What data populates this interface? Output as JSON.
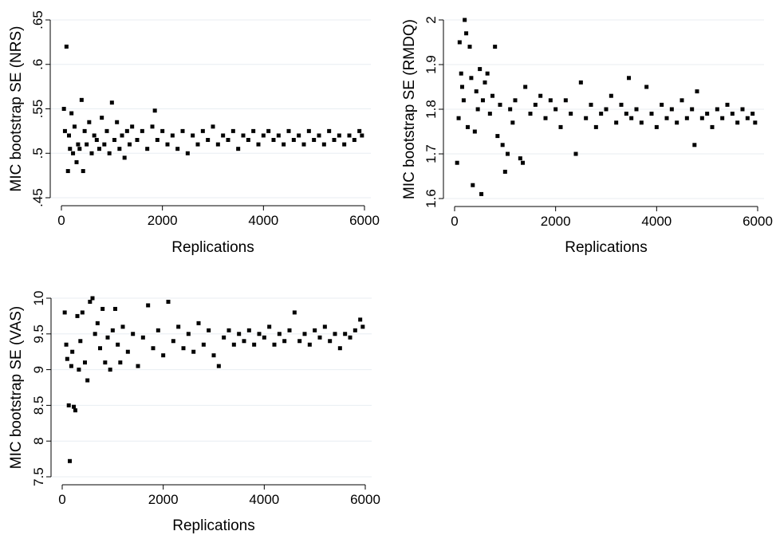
{
  "chart_data": [
    {
      "type": "scatter",
      "xlabel": "Replications",
      "ylabel": "MIC bootstrap SE (NRS)",
      "xlim": [
        0,
        6000
      ],
      "ylim": [
        0.45,
        0.65
      ],
      "xticks": [
        "0",
        "2000",
        "4000",
        "6000"
      ],
      "yticks": [
        ".45",
        ".5",
        ".55",
        ".6",
        ".65"
      ],
      "grid": true,
      "series": [
        {
          "points": [
            [
              50,
              0.55
            ],
            [
              70,
              0.525
            ],
            [
              100,
              0.62
            ],
            [
              130,
              0.48
            ],
            [
              150,
              0.52
            ],
            [
              170,
              0.505
            ],
            [
              200,
              0.545
            ],
            [
              230,
              0.5
            ],
            [
              260,
              0.53
            ],
            [
              300,
              0.49
            ],
            [
              330,
              0.51
            ],
            [
              360,
              0.505
            ],
            [
              400,
              0.56
            ],
            [
              430,
              0.48
            ],
            [
              460,
              0.525
            ],
            [
              500,
              0.51
            ],
            [
              550,
              0.535
            ],
            [
              600,
              0.5
            ],
            [
              650,
              0.52
            ],
            [
              700,
              0.515
            ],
            [
              750,
              0.505
            ],
            [
              800,
              0.54
            ],
            [
              850,
              0.51
            ],
            [
              900,
              0.525
            ],
            [
              950,
              0.5
            ],
            [
              1000,
              0.557
            ],
            [
              1050,
              0.515
            ],
            [
              1100,
              0.535
            ],
            [
              1150,
              0.505
            ],
            [
              1200,
              0.52
            ],
            [
              1250,
              0.495
            ],
            [
              1300,
              0.525
            ],
            [
              1350,
              0.51
            ],
            [
              1400,
              0.53
            ],
            [
              1500,
              0.515
            ],
            [
              1600,
              0.525
            ],
            [
              1700,
              0.505
            ],
            [
              1800,
              0.53
            ],
            [
              1850,
              0.548
            ],
            [
              1900,
              0.515
            ],
            [
              2000,
              0.525
            ],
            [
              2100,
              0.51
            ],
            [
              2200,
              0.52
            ],
            [
              2300,
              0.505
            ],
            [
              2400,
              0.525
            ],
            [
              2500,
              0.5
            ],
            [
              2600,
              0.52
            ],
            [
              2700,
              0.51
            ],
            [
              2800,
              0.525
            ],
            [
              2900,
              0.515
            ],
            [
              3000,
              0.53
            ],
            [
              3100,
              0.51
            ],
            [
              3200,
              0.52
            ],
            [
              3300,
              0.515
            ],
            [
              3400,
              0.525
            ],
            [
              3500,
              0.505
            ],
            [
              3600,
              0.52
            ],
            [
              3700,
              0.515
            ],
            [
              3800,
              0.525
            ],
            [
              3900,
              0.51
            ],
            [
              4000,
              0.52
            ],
            [
              4100,
              0.525
            ],
            [
              4200,
              0.515
            ],
            [
              4300,
              0.52
            ],
            [
              4400,
              0.51
            ],
            [
              4500,
              0.525
            ],
            [
              4600,
              0.515
            ],
            [
              4700,
              0.52
            ],
            [
              4800,
              0.51
            ],
            [
              4900,
              0.525
            ],
            [
              5000,
              0.515
            ],
            [
              5100,
              0.52
            ],
            [
              5200,
              0.51
            ],
            [
              5300,
              0.525
            ],
            [
              5400,
              0.515
            ],
            [
              5500,
              0.52
            ],
            [
              5600,
              0.51
            ],
            [
              5700,
              0.52
            ],
            [
              5800,
              0.515
            ],
            [
              5900,
              0.525
            ],
            [
              5950,
              0.52
            ]
          ]
        }
      ]
    },
    {
      "type": "scatter",
      "xlabel": "Replications",
      "ylabel": "MIC bootstrap SE (RMDQ)",
      "xlim": [
        0,
        6000
      ],
      "ylim": [
        1.6,
        2.0
      ],
      "xticks": [
        "0",
        "2000",
        "4000",
        "6000"
      ],
      "yticks": [
        "1.6",
        "1.7",
        "1.8",
        "1.9",
        "2"
      ],
      "grid": true,
      "series": [
        {
          "points": [
            [
              50,
              1.68
            ],
            [
              80,
              1.78
            ],
            [
              100,
              1.95
            ],
            [
              130,
              1.88
            ],
            [
              150,
              1.85
            ],
            [
              180,
              1.82
            ],
            [
              200,
              2.0
            ],
            [
              230,
              1.97
            ],
            [
              260,
              1.76
            ],
            [
              300,
              1.94
            ],
            [
              330,
              1.87
            ],
            [
              360,
              1.63
            ],
            [
              400,
              1.75
            ],
            [
              430,
              1.84
            ],
            [
              460,
              1.8
            ],
            [
              500,
              1.89
            ],
            [
              530,
              1.61
            ],
            [
              560,
              1.82
            ],
            [
              600,
              1.86
            ],
            [
              650,
              1.88
            ],
            [
              700,
              1.79
            ],
            [
              750,
              1.83
            ],
            [
              800,
              1.94
            ],
            [
              850,
              1.74
            ],
            [
              900,
              1.81
            ],
            [
              950,
              1.72
            ],
            [
              1000,
              1.66
            ],
            [
              1050,
              1.7
            ],
            [
              1100,
              1.8
            ],
            [
              1150,
              1.77
            ],
            [
              1200,
              1.82
            ],
            [
              1300,
              1.69
            ],
            [
              1350,
              1.68
            ],
            [
              1400,
              1.85
            ],
            [
              1500,
              1.79
            ],
            [
              1600,
              1.81
            ],
            [
              1700,
              1.83
            ],
            [
              1800,
              1.78
            ],
            [
              1900,
              1.82
            ],
            [
              2000,
              1.8
            ],
            [
              2100,
              1.76
            ],
            [
              2200,
              1.82
            ],
            [
              2300,
              1.79
            ],
            [
              2400,
              1.7
            ],
            [
              2500,
              1.86
            ],
            [
              2600,
              1.78
            ],
            [
              2700,
              1.81
            ],
            [
              2800,
              1.76
            ],
            [
              2900,
              1.79
            ],
            [
              3000,
              1.8
            ],
            [
              3100,
              1.83
            ],
            [
              3200,
              1.77
            ],
            [
              3300,
              1.81
            ],
            [
              3400,
              1.79
            ],
            [
              3450,
              1.87
            ],
            [
              3500,
              1.78
            ],
            [
              3600,
              1.8
            ],
            [
              3700,
              1.77
            ],
            [
              3800,
              1.85
            ],
            [
              3900,
              1.79
            ],
            [
              4000,
              1.76
            ],
            [
              4100,
              1.81
            ],
            [
              4200,
              1.78
            ],
            [
              4300,
              1.8
            ],
            [
              4400,
              1.77
            ],
            [
              4500,
              1.82
            ],
            [
              4600,
              1.78
            ],
            [
              4700,
              1.8
            ],
            [
              4750,
              1.72
            ],
            [
              4800,
              1.84
            ],
            [
              4900,
              1.78
            ],
            [
              5000,
              1.79
            ],
            [
              5100,
              1.76
            ],
            [
              5200,
              1.8
            ],
            [
              5300,
              1.78
            ],
            [
              5400,
              1.81
            ],
            [
              5500,
              1.79
            ],
            [
              5600,
              1.77
            ],
            [
              5700,
              1.8
            ],
            [
              5800,
              1.78
            ],
            [
              5900,
              1.79
            ],
            [
              5950,
              1.77
            ]
          ]
        }
      ]
    },
    {
      "type": "scatter",
      "xlabel": "Replications",
      "ylabel": "MIC bootstrap SE (VAS)",
      "xlim": [
        0,
        6000
      ],
      "ylim": [
        7.5,
        10.0
      ],
      "xticks": [
        "0",
        "2000",
        "4000",
        "6000"
      ],
      "yticks": [
        "7.5",
        "8",
        "8.5",
        "9",
        "9.5",
        "10"
      ],
      "grid": true,
      "series": [
        {
          "points": [
            [
              50,
              9.8
            ],
            [
              80,
              9.35
            ],
            [
              100,
              9.15
            ],
            [
              130,
              8.5
            ],
            [
              150,
              7.72
            ],
            [
              180,
              9.05
            ],
            [
              200,
              9.25
            ],
            [
              230,
              8.48
            ],
            [
              260,
              8.43
            ],
            [
              300,
              9.75
            ],
            [
              330,
              9.0
            ],
            [
              360,
              9.4
            ],
            [
              400,
              9.8
            ],
            [
              450,
              9.1
            ],
            [
              500,
              8.85
            ],
            [
              550,
              9.95
            ],
            [
              600,
              10.0
            ],
            [
              650,
              9.5
            ],
            [
              700,
              9.65
            ],
            [
              750,
              9.3
            ],
            [
              800,
              9.85
            ],
            [
              850,
              9.1
            ],
            [
              900,
              9.45
            ],
            [
              950,
              9.0
            ],
            [
              1000,
              9.55
            ],
            [
              1050,
              9.85
            ],
            [
              1100,
              9.35
            ],
            [
              1150,
              9.1
            ],
            [
              1200,
              9.6
            ],
            [
              1300,
              9.25
            ],
            [
              1400,
              9.5
            ],
            [
              1500,
              9.05
            ],
            [
              1600,
              9.45
            ],
            [
              1700,
              9.9
            ],
            [
              1800,
              9.3
            ],
            [
              1900,
              9.55
            ],
            [
              2000,
              9.2
            ],
            [
              2100,
              9.95
            ],
            [
              2200,
              9.4
            ],
            [
              2300,
              9.6
            ],
            [
              2400,
              9.3
            ],
            [
              2500,
              9.5
            ],
            [
              2600,
              9.25
            ],
            [
              2700,
              9.65
            ],
            [
              2800,
              9.35
            ],
            [
              2900,
              9.55
            ],
            [
              3000,
              9.2
            ],
            [
              3100,
              9.05
            ],
            [
              3200,
              9.45
            ],
            [
              3300,
              9.55
            ],
            [
              3400,
              9.35
            ],
            [
              3500,
              9.5
            ],
            [
              3600,
              9.4
            ],
            [
              3700,
              9.55
            ],
            [
              3800,
              9.35
            ],
            [
              3900,
              9.5
            ],
            [
              4000,
              9.45
            ],
            [
              4100,
              9.6
            ],
            [
              4200,
              9.35
            ],
            [
              4300,
              9.5
            ],
            [
              4400,
              9.4
            ],
            [
              4500,
              9.55
            ],
            [
              4600,
              9.8
            ],
            [
              4700,
              9.4
            ],
            [
              4800,
              9.5
            ],
            [
              4900,
              9.35
            ],
            [
              5000,
              9.55
            ],
            [
              5100,
              9.45
            ],
            [
              5200,
              9.6
            ],
            [
              5300,
              9.4
            ],
            [
              5400,
              9.5
            ],
            [
              5500,
              9.3
            ],
            [
              5600,
              9.5
            ],
            [
              5700,
              9.45
            ],
            [
              5800,
              9.55
            ],
            [
              5900,
              9.7
            ],
            [
              5950,
              9.6
            ]
          ]
        }
      ]
    }
  ]
}
